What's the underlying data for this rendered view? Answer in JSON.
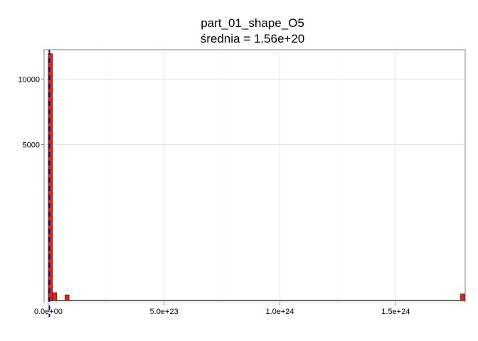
{
  "chart_data": {
    "type": "bar",
    "title": "part_01_shape_O5",
    "subtitle": "średnia = 1.56e+20",
    "xlabel": "",
    "ylabel": "",
    "scale_y": "sqrt",
    "xlim": [
      -1.8e+22,
      1.8e+24
    ],
    "ylim": [
      0,
      12800
    ],
    "grid": true,
    "bar_fill": "#e8230f",
    "bar_outline": "#111111",
    "mean_line_color": "#0a0a8c",
    "mean_line_style": "dashed",
    "mean_value": 1.56e+20,
    "x_ticks": [
      {
        "value": 0,
        "label": "0.0e+00"
      },
      {
        "value": 5e+23,
        "label": "5.0e+23"
      },
      {
        "value": 1e+24,
        "label": "1.0e+24"
      },
      {
        "value": 1.5e+24,
        "label": "1.5e+24"
      }
    ],
    "y_ticks": [
      {
        "value": 5000,
        "label": "5000"
      },
      {
        "value": 10000,
        "label": "10000"
      }
    ],
    "bins": [
      {
        "x": 0,
        "count": 12400
      },
      {
        "x": 1.8e+22,
        "count": 20
      },
      {
        "x": 7.2e+22,
        "count": 12
      },
      {
        "x": 1.78e+24,
        "count": 15
      }
    ],
    "bin_width": 1.8e+22
  }
}
